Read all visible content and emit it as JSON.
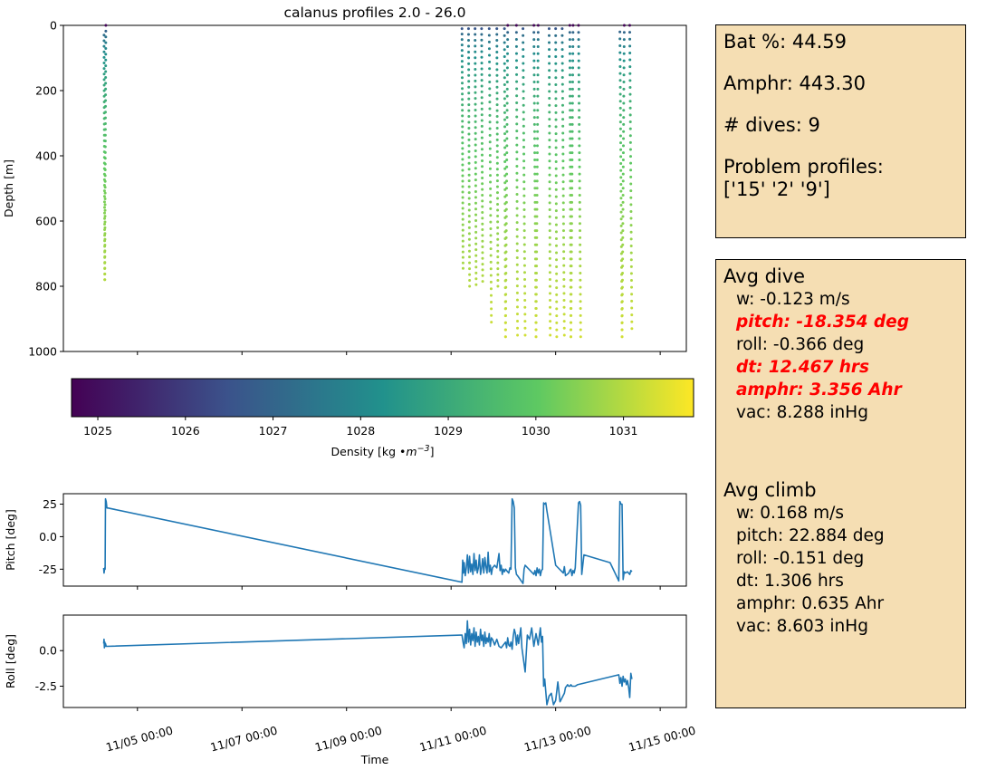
{
  "chart_data": [
    {
      "type": "scatter",
      "title": "calanus profiles 2.0 - 26.0",
      "xlabel": "",
      "ylabel": "Depth [m]",
      "ylim": [
        1000,
        0
      ],
      "yticks": [
        0,
        200,
        400,
        600,
        800,
        1000
      ],
      "x_time_range": [
        "11/03 14:00",
        "11/15 12:00"
      ],
      "grid": false,
      "colormap": "viridis",
      "color_label": "Density [kg •m$^{-3}$]",
      "color_label_parts": [
        "Density [kg ",
        "•",
        "m",
        "−3",
        "]"
      ],
      "color_range": [
        1024.7,
        1031.8
      ],
      "color_ticks": [
        1025,
        1026,
        1027,
        1028,
        1029,
        1030,
        1031
      ],
      "profiles": [
        {
          "start": "11/04 08:40",
          "end": "11/04 09:00",
          "top_depth": 30,
          "bottom_depth": 780,
          "kind": "dive"
        },
        {
          "start": "11/04 09:00",
          "end": "11/04 09:30",
          "top_depth": 0,
          "bottom_depth": 780,
          "kind": "climb"
        },
        {
          "start": "11/11 05:00",
          "end": "11/11 05:30",
          "top_depth": 10,
          "bottom_depth": 745,
          "kind": "dive"
        },
        {
          "start": "11/11 08:00",
          "end": "11/11 08:30",
          "top_depth": 10,
          "bottom_depth": 800,
          "kind": "dive"
        },
        {
          "start": "11/11 11:00",
          "end": "11/11 11:30",
          "top_depth": 10,
          "bottom_depth": 795,
          "kind": "dive"
        },
        {
          "start": "11/11 14:00",
          "end": "11/11 14:30",
          "top_depth": 10,
          "bottom_depth": 785,
          "kind": "dive"
        },
        {
          "start": "11/11 17:30",
          "end": "11/11 18:30",
          "top_depth": 10,
          "bottom_depth": 910,
          "kind": "dive"
        },
        {
          "start": "11/11 21:00",
          "end": "11/11 21:30",
          "top_depth": 10,
          "bottom_depth": 800,
          "kind": "dive"
        },
        {
          "start": "11/12 00:30",
          "end": "11/12 01:00",
          "top_depth": 10,
          "bottom_depth": 955,
          "kind": "dive"
        },
        {
          "start": "11/12 01:00",
          "end": "11/12 02:00",
          "top_depth": 0,
          "bottom_depth": 955,
          "kind": "climb"
        },
        {
          "start": "11/12 06:00",
          "end": "11/12 06:30",
          "top_depth": 0,
          "bottom_depth": 950,
          "kind": "dive"
        },
        {
          "start": "11/12 09:00",
          "end": "11/12 10:00",
          "top_depth": 10,
          "bottom_depth": 950,
          "kind": "dive"
        },
        {
          "start": "11/12 14:00",
          "end": "11/12 15:00",
          "top_depth": 0,
          "bottom_depth": 955,
          "kind": "dive"
        },
        {
          "start": "11/12 15:00",
          "end": "11/12 16:00",
          "top_depth": 0,
          "bottom_depth": 955,
          "kind": "climb"
        },
        {
          "start": "11/12 21:00",
          "end": "11/12 21:30",
          "top_depth": 10,
          "bottom_depth": 950,
          "kind": "dive"
        },
        {
          "start": "11/13 00:00",
          "end": "11/13 00:30",
          "top_depth": 10,
          "bottom_depth": 955,
          "kind": "dive"
        },
        {
          "start": "11/13 03:00",
          "end": "11/13 04:00",
          "top_depth": 10,
          "bottom_depth": 950,
          "kind": "dive"
        },
        {
          "start": "11/13 06:30",
          "end": "11/13 07:00",
          "top_depth": 0,
          "bottom_depth": 955,
          "kind": "dive"
        },
        {
          "start": "11/13 07:00",
          "end": "11/13 08:00",
          "top_depth": 0,
          "bottom_depth": 955,
          "kind": "climb"
        },
        {
          "start": "11/13 10:30",
          "end": "11/13 11:30",
          "top_depth": 0,
          "bottom_depth": 955,
          "kind": "dive"
        },
        {
          "start": "11/14 05:30",
          "end": "11/14 06:30",
          "top_depth": 20,
          "bottom_depth": 955,
          "kind": "dive"
        },
        {
          "start": "11/14 06:30",
          "end": "11/14 07:30",
          "top_depth": 0,
          "bottom_depth": 955,
          "kind": "climb"
        },
        {
          "start": "11/14 10:00",
          "end": "11/14 11:00",
          "top_depth": 0,
          "bottom_depth": 930,
          "kind": "dive"
        }
      ]
    },
    {
      "type": "line",
      "xlabel": "",
      "ylabel": "Pitch [deg]",
      "ylim": [
        -38,
        33
      ],
      "yticks": [
        25,
        0,
        -25
      ],
      "color": "#1f77b4",
      "series": [
        {
          "x": [
            "11/04 08:30",
            "11/04 08:40",
            "11/04 09:00",
            "11/04 09:10",
            "11/04 09:20",
            "11/04 09:40",
            "11/04 10:00",
            "11/04 10:30",
            "11/11 05:00",
            "11/11 05:20",
            "11/11 05:40",
            "11/11 06:00",
            "11/11 06:30",
            "11/11 07:00",
            "11/11 07:30",
            "11/11 08:00",
            "11/11 08:30",
            "11/11 09:00",
            "11/11 09:30",
            "11/11 10:00",
            "11/11 10:30",
            "11/11 11:00",
            "11/11 11:30",
            "11/11 12:00",
            "11/11 12:30",
            "11/11 13:00",
            "11/11 13:30",
            "11/11 14:00",
            "11/11 14:30",
            "11/11 15:00",
            "11/11 15:30",
            "11/11 16:00",
            "11/11 16:30",
            "11/11 17:00",
            "11/11 17:30",
            "11/11 18:00",
            "11/11 18:30",
            "11/11 19:00",
            "11/11 20:00",
            "11/11 21:00",
            "11/11 22:00",
            "11/11 22:30",
            "11/11 23:00",
            "11/11 23:30",
            "11/12 00:00",
            "11/12 00:30",
            "11/12 01:00",
            "11/12 01:30",
            "11/12 02:00",
            "11/12 02:30",
            "11/12 03:00",
            "11/12 03:30",
            "11/12 04:00",
            "11/12 04:30",
            "11/12 05:00",
            "11/12 05:30",
            "11/12 06:00",
            "11/12 06:30",
            "11/12 09:00",
            "11/12 09:30",
            "11/12 10:00",
            "11/12 14:00",
            "11/12 14:30",
            "11/12 15:00",
            "11/12 15:30",
            "11/12 16:00",
            "11/12 16:30",
            "11/12 17:00",
            "11/12 17:30",
            "11/12 18:00",
            "11/12 18:30",
            "11/12 19:00",
            "11/12 19:30",
            "11/12 20:00",
            "11/13 00:00",
            "11/13 03:30",
            "11/13 04:00",
            "11/13 04:30",
            "11/13 06:00",
            "11/13 06:30",
            "11/13 07:00",
            "11/13 07:30",
            "11/13 08:00",
            "11/13 08:30",
            "11/13 09:00",
            "11/13 10:30",
            "11/13 11:00",
            "11/13 11:30",
            "11/13 12:00",
            "11/13 13:00",
            "11/14 01:00",
            "11/14 05:00",
            "11/14 05:30",
            "11/14 06:00",
            "11/14 06:30",
            "11/14 07:00",
            "11/14 07:30",
            "11/14 08:00",
            "11/14 09:00",
            "11/14 10:00",
            "11/14 10:30",
            "11/14 11:00"
          ],
          "values": [
            -24,
            -28,
            -24,
            -25,
            29,
            27,
            22,
            22,
            -35,
            -18,
            -28,
            -20,
            -30,
            -24,
            -14,
            -28,
            -15,
            -27,
            -21,
            -29,
            -13,
            -26,
            -18,
            -28,
            -24,
            -14,
            -29,
            -24,
            -17,
            -28,
            -16,
            -23,
            -28,
            -12,
            -27,
            -22,
            -29,
            -24,
            -22,
            -24,
            -13,
            -26,
            -22,
            -29,
            -25,
            -27,
            -25,
            -26,
            -27,
            -28,
            -24,
            -25,
            29,
            27,
            22,
            -24,
            -29,
            -30,
            -36,
            -25,
            -22,
            -29,
            -26,
            -30,
            -24,
            -28,
            -25,
            -30,
            -26,
            -25,
            26,
            25,
            26,
            20,
            -22,
            -28,
            -23,
            -30,
            -28,
            -26,
            -25,
            -30,
            -26,
            -28,
            -24,
            26,
            27,
            24,
            -29,
            -14,
            -20,
            -34,
            27,
            25,
            25,
            -33,
            -27,
            -28,
            -27,
            -29,
            -26,
            -27
          ],
          "color_encoding": "line"
        }
      ]
    },
    {
      "type": "line",
      "xlabel": "Time",
      "ylabel": "Roll [deg]",
      "ylim": [
        -4.0,
        2.5
      ],
      "yticks": [
        0.0,
        -2.5
      ],
      "x_tick_labels": [
        "11/05 00:00",
        "11/07 00:00",
        "11/09 00:00",
        "11/11 00:00",
        "11/13 00:00",
        "11/15 00:00"
      ],
      "color": "#1f77b4",
      "series": [
        {
          "x": [
            "11/04 08:30",
            "11/04 08:40",
            "11/04 08:50",
            "11/04 09:00",
            "11/04 09:10",
            "11/04 09:20",
            "11/04 09:40",
            "11/04 10:00",
            "11/11 05:00",
            "11/11 05:30",
            "11/11 06:00",
            "11/11 06:30",
            "11/11 07:00",
            "11/11 07:30",
            "11/11 08:00",
            "11/11 08:30",
            "11/11 09:00",
            "11/11 09:30",
            "11/11 10:00",
            "11/11 10:30",
            "11/11 11:00",
            "11/11 11:30",
            "11/11 12:00",
            "11/11 12:30",
            "11/11 13:00",
            "11/11 13:30",
            "11/11 14:00",
            "11/11 14:30",
            "11/11 15:00",
            "11/11 15:30",
            "11/11 16:00",
            "11/11 16:30",
            "11/11 17:00",
            "11/11 17:30",
            "11/11 18:00",
            "11/11 18:30",
            "11/11 19:00",
            "11/11 20:00",
            "11/11 21:00",
            "11/11 22:00",
            "11/11 23:00",
            "11/12 01:00",
            "11/12 01:30",
            "11/12 02:00",
            "11/12 02:30",
            "11/12 03:00",
            "11/12 03:30",
            "11/12 04:00",
            "11/12 04:30",
            "11/12 05:00",
            "11/12 05:30",
            "11/12 06:00",
            "11/12 06:30",
            "11/12 07:00",
            "11/12 08:00",
            "11/12 08:30",
            "11/12 10:00",
            "11/12 11:00",
            "11/12 12:00",
            "11/12 13:00",
            "11/12 14:00",
            "11/12 15:00",
            "11/12 16:00",
            "11/12 17:00",
            "11/12 17:30",
            "11/12 18:00",
            "11/12 18:30",
            "11/12 19:00",
            "11/12 20:00",
            "11/12 21:00",
            "11/12 22:00",
            "11/12 23:00",
            "11/13 00:00",
            "11/13 01:00",
            "11/13 02:00",
            "11/13 03:00",
            "11/13 04:00",
            "11/13 04:30",
            "11/13 05:00",
            "11/13 05:30",
            "11/13 06:00",
            "11/13 06:30",
            "11/13 07:00",
            "11/13 07:30",
            "11/13 08:00",
            "11/13 09:00",
            "11/13 10:00",
            "11/14 05:00",
            "11/14 05:30",
            "11/14 06:00",
            "11/14 06:30",
            "11/14 07:00",
            "11/14 07:30",
            "11/14 08:00",
            "11/14 08:30",
            "11/14 09:00",
            "11/14 09:30",
            "11/14 10:00",
            "11/14 10:30",
            "11/14 11:00"
          ],
          "values": [
            0.5,
            0.8,
            0.2,
            0.6,
            0.3,
            0.5,
            0.3,
            0.3,
            1.1,
            0.6,
            0.2,
            1.2,
            0.5,
            2.1,
            0.6,
            1.5,
            0.4,
            1.2,
            0.7,
            1.6,
            0.3,
            1.3,
            0.6,
            1.0,
            0.4,
            1.5,
            0.7,
            1.1,
            0.3,
            1.3,
            0.5,
            0.9,
            0.6,
            1.2,
            0.3,
            0.9,
            0.8,
            0.4,
            0.8,
            0.3,
            0.2,
            0.6,
            0.2,
            0.9,
            0.4,
            0.3,
            0.6,
            0.1,
            1.0,
            1.5,
            1.2,
            0.4,
            1.1,
            0.5,
            1.6,
            0.2,
            -1.5,
            1.1,
            0.8,
            1.6,
            0.3,
            1.2,
            0.4,
            1.6,
            0.6,
            1.0,
            -2.5,
            -2.0,
            -3.8,
            -3.2,
            -3.0,
            -3.8,
            -3.5,
            -2.2,
            -3.6,
            -3.3,
            -3.0,
            -2.6,
            -2.5,
            -2.4,
            -2.5,
            -2.5,
            -2.4,
            -2.5,
            -2.5,
            -2.5,
            -2.4,
            -1.7,
            -2.3,
            -1.9,
            -2.5,
            -1.8,
            -2.2,
            -2.0,
            -2.4,
            -2.1,
            -2.6,
            -3.3,
            -1.6,
            -2.0
          ],
          "color_encoding": "line"
        }
      ]
    }
  ],
  "panels": {
    "status": {
      "bat": "Bat %: 44.59",
      "amphr": "Amphr: 443.30",
      "dives": "# dives: 9",
      "problem": "Problem profiles:\n['15' '2' '9']"
    },
    "avg_dive": {
      "heading": "Avg dive",
      "rows": [
        {
          "text": "w: -0.123 m/s",
          "flag": false
        },
        {
          "text": "pitch: -18.354 deg",
          "flag": true
        },
        {
          "text": "roll: -0.366 deg",
          "flag": false
        },
        {
          "text": "dt: 12.467 hrs",
          "flag": true
        },
        {
          "text": "amphr: 3.356 Ahr",
          "flag": true
        },
        {
          "text": "vac: 8.288 inHg",
          "flag": false
        }
      ]
    },
    "avg_climb": {
      "heading": "Avg climb",
      "rows": [
        {
          "text": "w: 0.168 m/s",
          "flag": false
        },
        {
          "text": "pitch: 22.884 deg",
          "flag": false
        },
        {
          "text": "roll: -0.151 deg",
          "flag": false
        },
        {
          "text": "dt: 1.306 hrs",
          "flag": false
        },
        {
          "text": "amphr: 0.635 Ahr",
          "flag": false
        },
        {
          "text": "vac: 8.603 inHg",
          "flag": false
        }
      ]
    },
    "flag_color": "#ff0000",
    "background": "#f5deb3"
  }
}
